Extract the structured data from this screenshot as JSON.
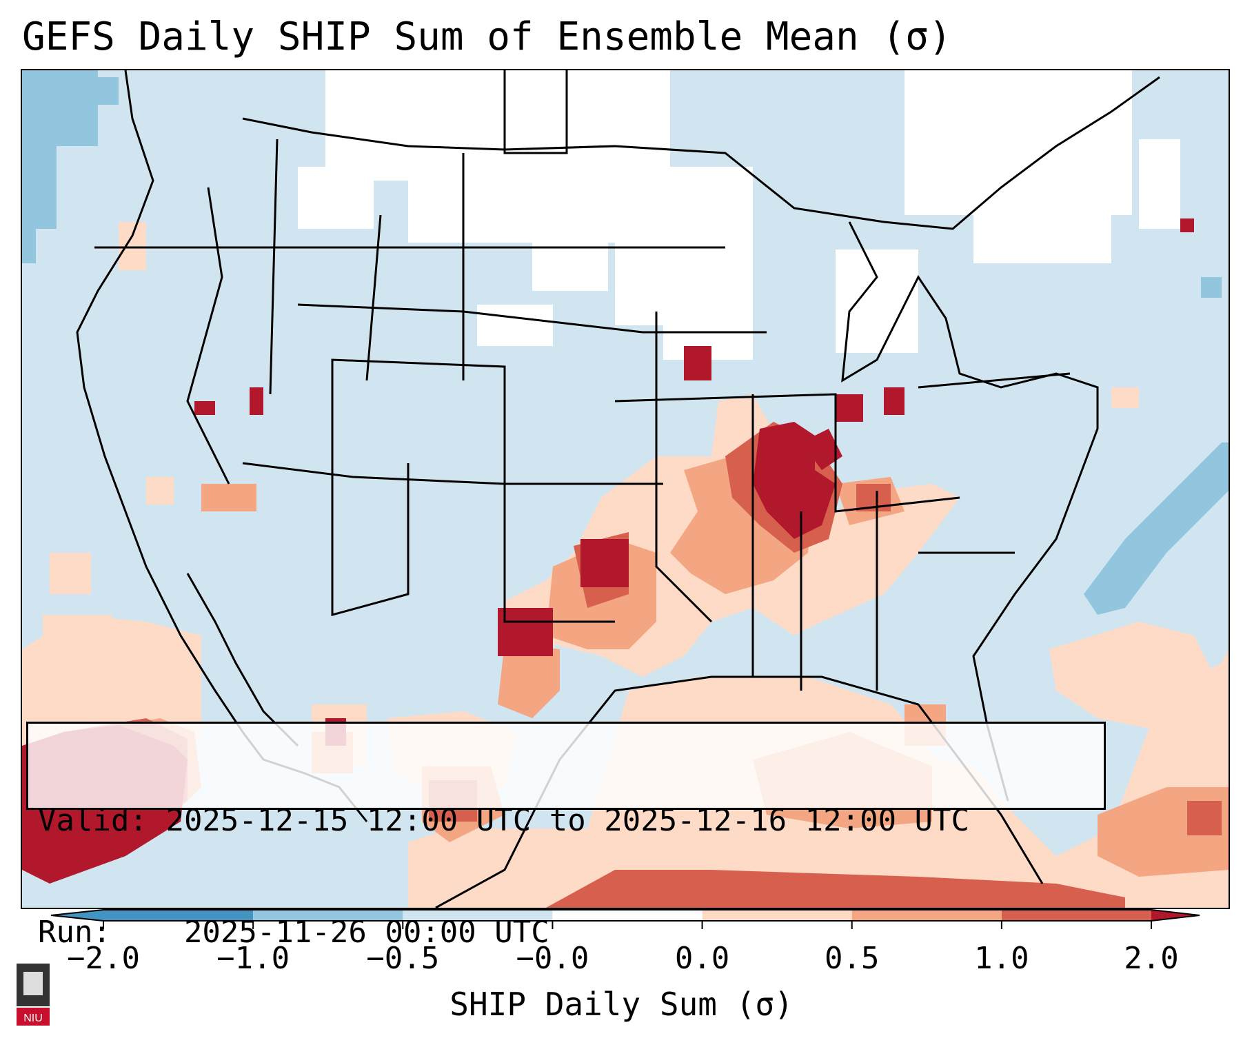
{
  "title": "GEFS Daily SHIP Sum of Ensemble Mean (σ)",
  "info": {
    "valid_label": "Valid:",
    "valid_value": "2025-12-15 12:00 UTC to 2025-12-16 12:00 UTC",
    "run_label": "Run:",
    "run_value": "2025-11-26 00:00 UTC"
  },
  "colorbar": {
    "label": "SHIP Daily Sum (σ)",
    "ticks": [
      "−2.0",
      "−1.0",
      "−0.5",
      "−0.0",
      "0.0",
      "0.5",
      "1.0",
      "2.0"
    ],
    "bin_colors": [
      "#4393c3",
      "#92c5de",
      "#d1e5f0",
      "#ffffff",
      "#fddbc7",
      "#f4a582",
      "#d6604d",
      "#b2182b"
    ],
    "extend": "both"
  },
  "logo": {
    "text": "NIU"
  }
}
